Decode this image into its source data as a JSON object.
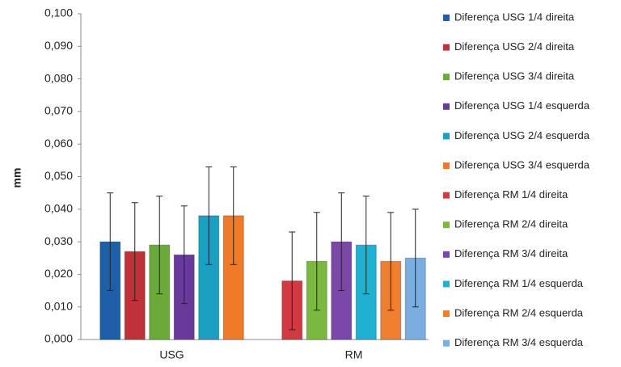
{
  "chart_data": {
    "type": "bar",
    "y_label": "mm",
    "categories": [
      "USG",
      "RM"
    ],
    "series": [
      {
        "name": "Diferença USG 1/4 direita",
        "color": "#1f5fa8",
        "values": [
          0.03,
          null
        ],
        "errors": [
          0.015,
          null
        ]
      },
      {
        "name": "Diferença USG 2/4 direita",
        "color": "#c0323a",
        "values": [
          0.027,
          null
        ],
        "errors": [
          0.015,
          null
        ]
      },
      {
        "name": "Diferença USG 3/4 direita",
        "color": "#6aaa3a",
        "values": [
          0.029,
          null
        ],
        "errors": [
          0.015,
          null
        ]
      },
      {
        "name": "Diferença USG 1/4 esquerda",
        "color": "#6a3a9a",
        "values": [
          0.026,
          null
        ],
        "errors": [
          0.015,
          null
        ]
      },
      {
        "name": "Diferença USG 2/4 esquerda",
        "color": "#1aa0c0",
        "values": [
          0.038,
          null
        ],
        "errors": [
          0.015,
          null
        ]
      },
      {
        "name": "Diferença USG 3/4 esquerda",
        "color": "#ef7a2a",
        "values": [
          0.038,
          null
        ],
        "errors": [
          0.015,
          null
        ]
      },
      {
        "name": "Diferença RM 1/4 direita",
        "color": "#d03a40",
        "values": [
          null,
          0.018
        ],
        "errors": [
          null,
          0.015
        ]
      },
      {
        "name": "Diferença RM 2/4 direita",
        "color": "#7ab840",
        "values": [
          null,
          0.024
        ],
        "errors": [
          null,
          0.015
        ]
      },
      {
        "name": "Diferença RM 3/4 direita",
        "color": "#7a48a8",
        "values": [
          null,
          0.03
        ],
        "errors": [
          null,
          0.015
        ]
      },
      {
        "name": "Diferença RM 1/4 esquerda",
        "color": "#20b0d0",
        "values": [
          null,
          0.029
        ],
        "errors": [
          null,
          0.015
        ]
      },
      {
        "name": "Diferença RM 2/4 esquerda",
        "color": "#f08030",
        "values": [
          null,
          0.024
        ],
        "errors": [
          null,
          0.015
        ]
      },
      {
        "name": "Diferença RM 3/4 esquerda",
        "color": "#7aaee0",
        "values": [
          null,
          0.025
        ],
        "errors": [
          null,
          0.015
        ]
      }
    ],
    "ylim": [
      0,
      0.1
    ],
    "yticks": [
      {
        "value": 0,
        "label": "0,000"
      },
      {
        "value": 0.01,
        "label": "0,010"
      },
      {
        "value": 0.02,
        "label": "0,020"
      },
      {
        "value": 0.03,
        "label": "0,030"
      },
      {
        "value": 0.04,
        "label": "0,040"
      },
      {
        "value": 0.05,
        "label": "0,050"
      },
      {
        "value": 0.06,
        "label": "0,060"
      },
      {
        "value": 0.07,
        "label": "0,070"
      },
      {
        "value": 0.08,
        "label": "0,080"
      },
      {
        "value": 0.09,
        "label": "0,090"
      },
      {
        "value": 0.1,
        "label": "0,100"
      }
    ],
    "grid": false,
    "legend": "right"
  }
}
